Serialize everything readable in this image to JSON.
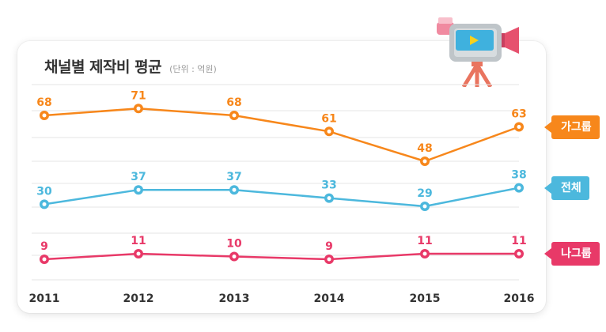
{
  "title": "채널별 제작비 평균",
  "unit": "(단위 : 억원)",
  "colors": {
    "orange": "#f7871b",
    "blue": "#4cb8dd",
    "pink": "#e83968",
    "grid": "#e6e6e6",
    "axis_text": "#333333"
  },
  "icon": "video-camera-icon",
  "chart_data": {
    "type": "line",
    "x": [
      "2011",
      "2012",
      "2013",
      "2014",
      "2015",
      "2016"
    ],
    "ylim": [
      0,
      80
    ],
    "grid": true,
    "series": [
      {
        "name": "가그룹",
        "color": "#f7871b",
        "values": [
          68,
          71,
          68,
          61,
          48,
          63
        ]
      },
      {
        "name": "전체",
        "color": "#4cb8dd",
        "values": [
          30,
          37,
          37,
          33,
          29,
          38
        ]
      },
      {
        "name": "나그룹",
        "color": "#e83968",
        "values": [
          9,
          11,
          10,
          9,
          11,
          11
        ]
      }
    ]
  }
}
